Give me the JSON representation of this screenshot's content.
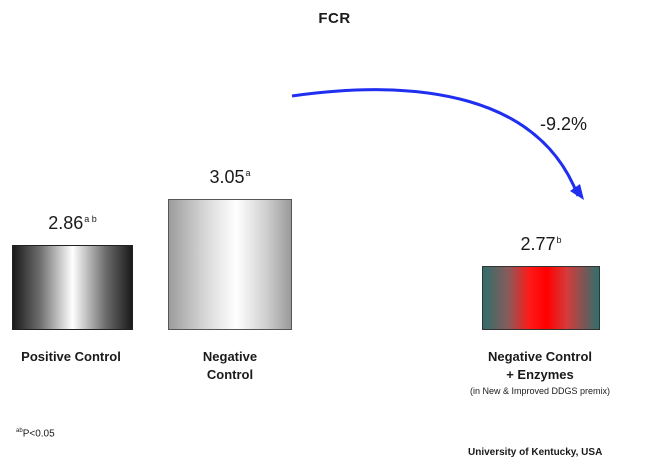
{
  "chart_data": {
    "type": "bar",
    "title": "FCR",
    "categories": [
      "Positive Control",
      "Negative Control",
      "Negative Control + Enzymes"
    ],
    "category_lines": [
      [
        "Positive Control"
      ],
      [
        "Negative",
        "Control"
      ],
      [
        "Negative Control",
        "+ Enzymes"
      ]
    ],
    "category_subtitle": "(in New & Improved DDGS premix)",
    "values": [
      2.86,
      3.05,
      2.77
    ],
    "value_labels": [
      "2.86",
      "3.05",
      "2.77"
    ],
    "superscripts": [
      "a b",
      "a",
      "b"
    ],
    "bar_colors": [
      "#1a1a1a",
      "#c8c8c8",
      "#ff0000"
    ],
    "ylim": [
      2.5,
      3.1
    ],
    "annotation": "-9.2%",
    "arrow_color": "#1f2ef0",
    "footnote_sup": "ab",
    "footnote": "P<0.05",
    "source": "University of Kentucky, USA"
  }
}
